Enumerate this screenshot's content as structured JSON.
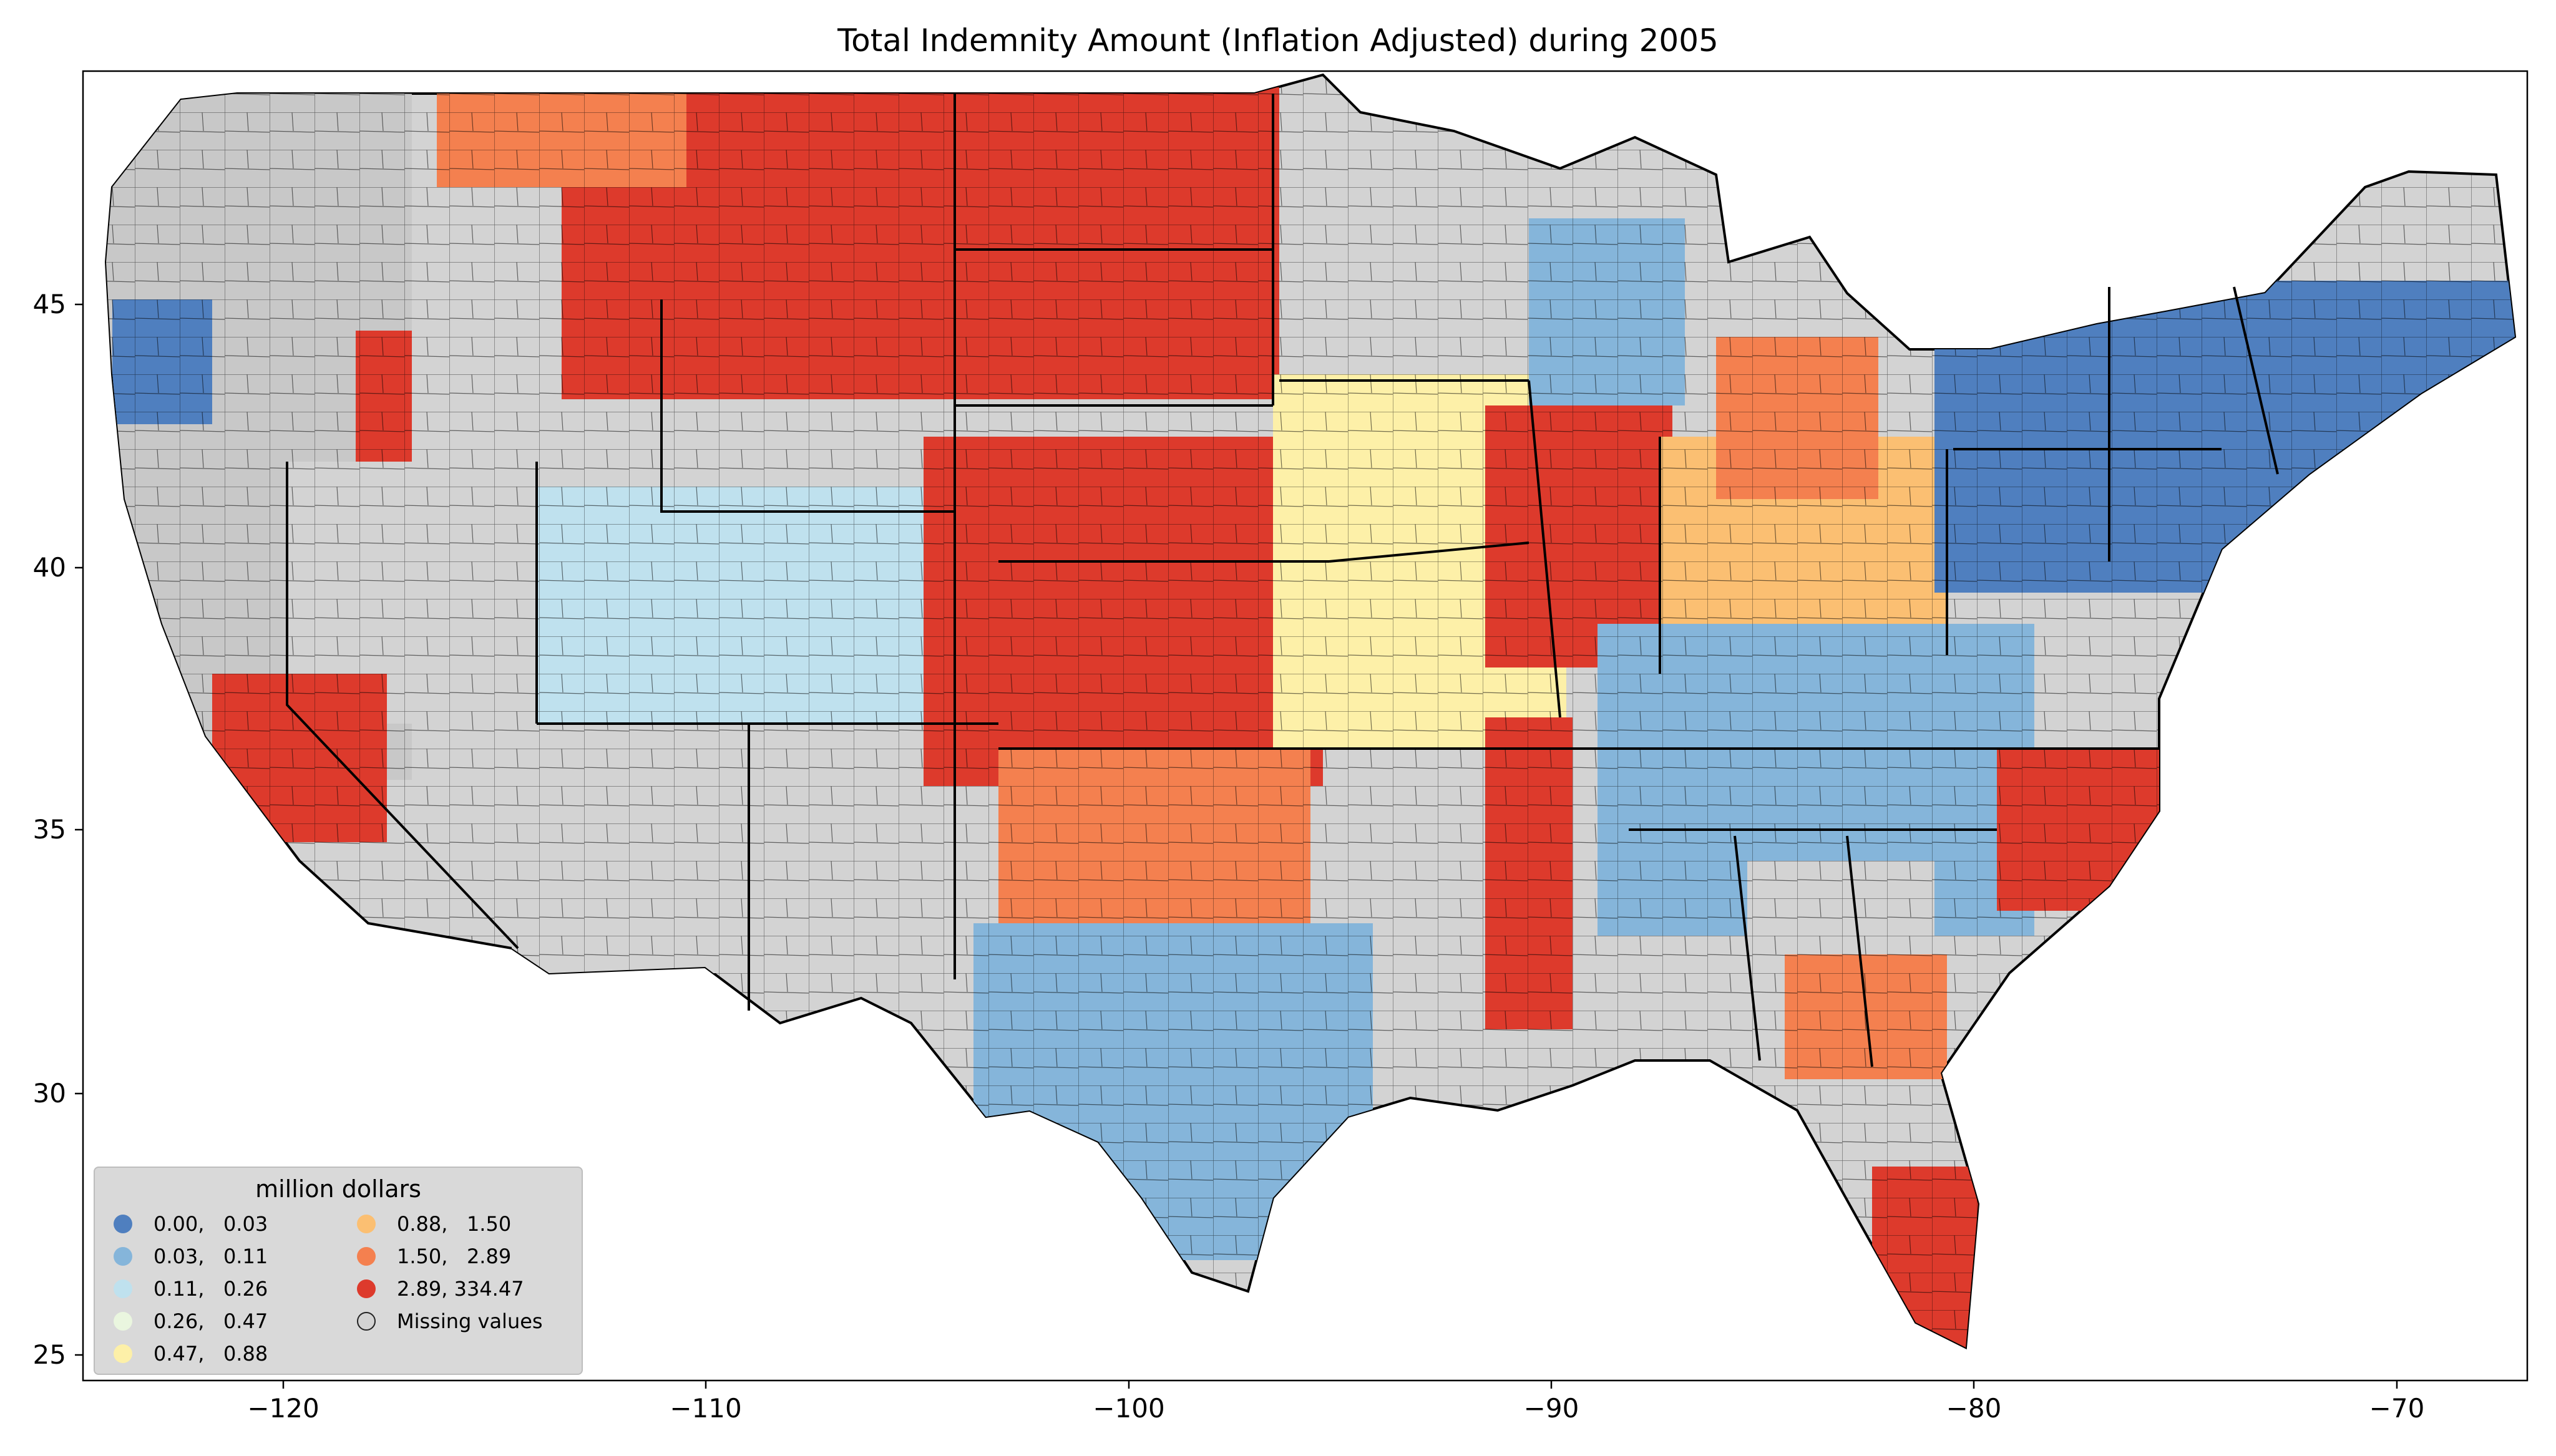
{
  "title": "Total Indemnity Amount  (Inflation Adjusted) during 2005",
  "x_axis": {
    "ticks": [
      "−120",
      "−110",
      "−100",
      "−90",
      "−80",
      "−70"
    ]
  },
  "y_axis": {
    "ticks": [
      "25",
      "30",
      "35",
      "40",
      "45"
    ]
  },
  "legend": {
    "title": "million dollars",
    "placement": "lower-left",
    "items": [
      {
        "label": "0.00,   0.03",
        "color": "#4f7fbf"
      },
      {
        "label": "0.03,   0.11",
        "color": "#85b5da"
      },
      {
        "label": "0.11,   0.26",
        "color": "#bfe1ee"
      },
      {
        "label": "0.26,   0.47",
        "color": "#eaf6df"
      },
      {
        "label": "0.47,   0.88",
        "color": "#fdf0a8"
      },
      {
        "label": "0.88,   1.50",
        "color": "#fbbf72"
      },
      {
        "label": "1.50,   2.89",
        "color": "#f4804f"
      },
      {
        "label": "2.89, 334.47",
        "color": "#dd3a2c"
      },
      {
        "label": "Missing values",
        "color": "#d3d3d3"
      }
    ]
  },
  "chart_data": {
    "type": "choropleth",
    "title": "Total Indemnity Amount  (Inflation Adjusted) during 2005",
    "xlim": [
      -125,
      -66.5
    ],
    "ylim": [
      24.5,
      49.3
    ],
    "xticks": [
      -120,
      -110,
      -100,
      -90,
      -80,
      -70
    ],
    "yticks": [
      25,
      30,
      35,
      40,
      45
    ],
    "legend_title": "million dollars",
    "bins": [
      [
        0.0,
        0.03
      ],
      [
        0.03,
        0.11
      ],
      [
        0.11,
        0.26
      ],
      [
        0.26,
        0.47
      ],
      [
        0.47,
        0.88
      ],
      [
        0.88,
        1.5
      ],
      [
        1.5,
        2.89
      ],
      [
        2.89,
        334.47
      ]
    ],
    "missing_label": "Missing values"
  }
}
